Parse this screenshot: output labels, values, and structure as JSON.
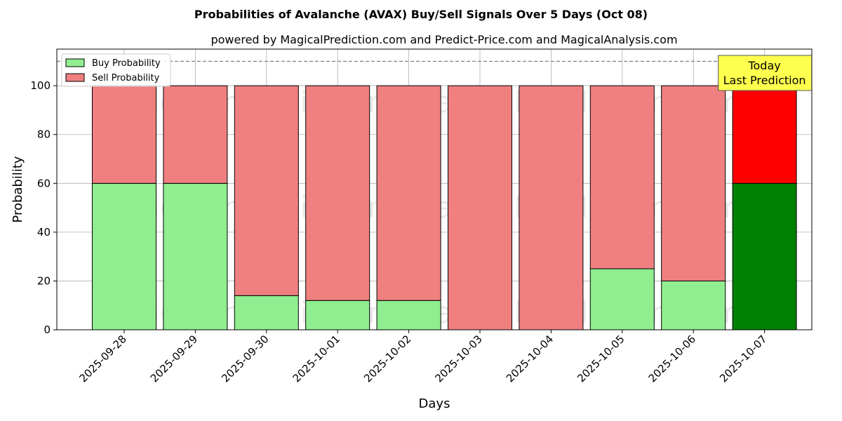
{
  "chart_data": {
    "type": "bar",
    "stacked": true,
    "title": "Probabilities of Avalanche (AVAX) Buy/Sell Signals Over 5 Days (Oct 08)",
    "subtitle": "powered by MagicalPrediction.com and Predict-Price.com and MagicalAnalysis.com",
    "xlabel": "Days",
    "ylabel": "Probability",
    "ylim": [
      0,
      115
    ],
    "yticks": [
      0,
      20,
      40,
      60,
      80,
      100
    ],
    "grid": true,
    "legend_position": "top-left",
    "categories": [
      "2025-09-28",
      "2025-09-29",
      "2025-09-30",
      "2025-10-01",
      "2025-10-02",
      "2025-10-03",
      "2025-10-04",
      "2025-10-05",
      "2025-10-06",
      "2025-10-07"
    ],
    "series": [
      {
        "name": "Buy Probability",
        "values": [
          60,
          60,
          14,
          12,
          12,
          0,
          0,
          25,
          20,
          60
        ],
        "color": "#90ee90",
        "highlight_color": "#008000"
      },
      {
        "name": "Sell Probability",
        "values": [
          40,
          40,
          86,
          88,
          88,
          100,
          100,
          75,
          80,
          40
        ],
        "color": "#f08080",
        "highlight_color": "#ff0000"
      }
    ],
    "highlight_index": 9,
    "reference_line": {
      "y": 110,
      "style": "dashed",
      "color": "#808080"
    },
    "annotation": {
      "lines": [
        "Today",
        "Last Prediction"
      ],
      "background": "#ffff4d"
    },
    "watermarks": [
      "MagicalAnalysis.com",
      "MagicalPrediction.com"
    ]
  }
}
